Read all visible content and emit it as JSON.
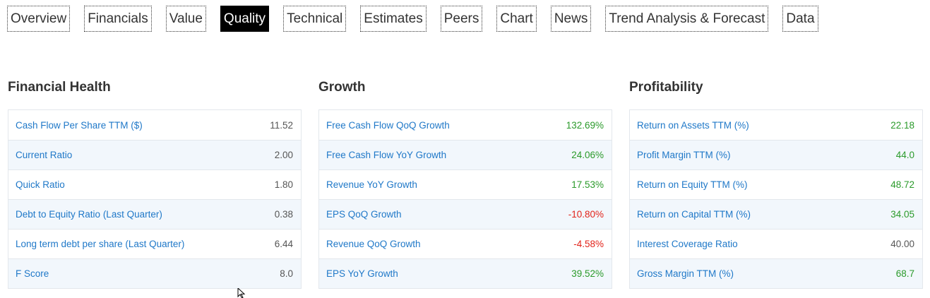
{
  "tabs": [
    {
      "label": "Overview",
      "active": false
    },
    {
      "label": "Financials",
      "active": false
    },
    {
      "label": "Value",
      "active": false
    },
    {
      "label": "Quality",
      "active": true
    },
    {
      "label": "Technical",
      "active": false
    },
    {
      "label": "Estimates",
      "active": false
    },
    {
      "label": "Peers",
      "active": false
    },
    {
      "label": "Chart",
      "active": false
    },
    {
      "label": "News",
      "active": false
    },
    {
      "label": "Trend Analysis & Forecast",
      "active": false
    },
    {
      "label": "Data",
      "active": false
    }
  ],
  "panels": [
    {
      "title": "Financial Health",
      "rows": [
        {
          "label": "Cash Flow Per Share TTM ($)",
          "value": "11.52",
          "tone": "neutral"
        },
        {
          "label": "Current Ratio",
          "value": "2.00",
          "tone": "neutral"
        },
        {
          "label": "Quick Ratio",
          "value": "1.80",
          "tone": "neutral"
        },
        {
          "label": "Debt to Equity Ratio (Last Quarter)",
          "value": "0.38",
          "tone": "neutral"
        },
        {
          "label": "Long term debt per share (Last Quarter)",
          "value": "6.44",
          "tone": "neutral"
        },
        {
          "label": "F Score",
          "value": "8.0",
          "tone": "neutral"
        }
      ]
    },
    {
      "title": "Growth",
      "rows": [
        {
          "label": "Free Cash Flow QoQ Growth",
          "value": "132.69%",
          "tone": "positive"
        },
        {
          "label": "Free Cash Flow YoY Growth",
          "value": "24.06%",
          "tone": "positive"
        },
        {
          "label": "Revenue YoY Growth",
          "value": "17.53%",
          "tone": "positive"
        },
        {
          "label": "EPS QoQ Growth",
          "value": "-10.80%",
          "tone": "negative"
        },
        {
          "label": "Revenue QoQ Growth",
          "value": "-4.58%",
          "tone": "negative"
        },
        {
          "label": "EPS YoY Growth",
          "value": "39.52%",
          "tone": "positive"
        }
      ]
    },
    {
      "title": "Profitability",
      "rows": [
        {
          "label": "Return on Assets TTM (%)",
          "value": "22.18",
          "tone": "positive"
        },
        {
          "label": "Profit Margin TTM (%)",
          "value": "44.0",
          "tone": "positive"
        },
        {
          "label": "Return on Equity TTM (%)",
          "value": "48.72",
          "tone": "positive"
        },
        {
          "label": "Return on Capital TTM (%)",
          "value": "34.05",
          "tone": "positive"
        },
        {
          "label": "Interest Coverage Ratio",
          "value": "40.00",
          "tone": "neutral"
        },
        {
          "label": "Gross Margin TTM (%)",
          "value": "68.7",
          "tone": "positive"
        }
      ]
    }
  ],
  "colors": {
    "link": "#1f78c8",
    "positive": "#2a9a2a",
    "negative": "#e2231a",
    "active_tab_bg": "#000000"
  },
  "cursor": {
    "icon": "mouse-pointer-icon"
  }
}
